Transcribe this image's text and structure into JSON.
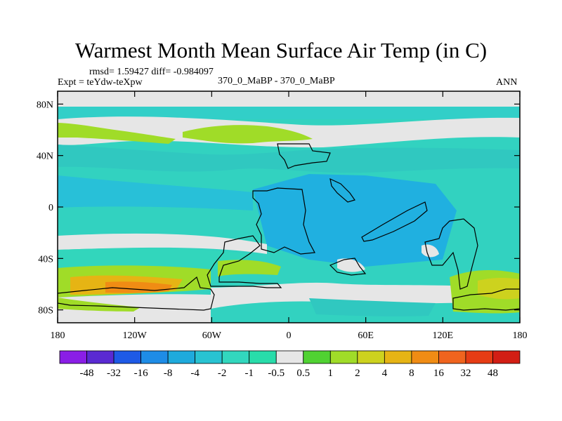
{
  "title": "Warmest Month Mean Surface Air Temp (in C)",
  "stats": "rmsd= 1.59427 diff= -0.984097",
  "left_label": "Expt = teYdw-teXpw",
  "center_label": "370_0_MaBP - 370_0_MaBP",
  "right_label": "ANN",
  "map": {
    "lat_ticks": [
      "80N",
      "40N",
      "0",
      "40S",
      "80S"
    ],
    "lat_values": [
      80,
      40,
      0,
      -40,
      -80
    ],
    "lon_ticks": [
      "180",
      "120W",
      "60W",
      "0",
      "60E",
      "120E",
      "180"
    ],
    "lon_values": [
      -180,
      -120,
      -60,
      0,
      60,
      120,
      180
    ],
    "lat_range": [
      -90,
      90
    ],
    "lon_range": [
      -180,
      180
    ]
  },
  "colorbar": {
    "labels": [
      "-48",
      "-32",
      "-16",
      "-8",
      "-4",
      "-2",
      "-1",
      "-0.5",
      "0.5",
      "1",
      "2",
      "4",
      "8",
      "16",
      "32",
      "48"
    ],
    "colors": [
      "#8a1ee6",
      "#5a2ad2",
      "#1e5ae6",
      "#1e8ce6",
      "#1eaadc",
      "#28c3d2",
      "#32d7be",
      "#28dcaa",
      "#e6e6e6",
      "#50d232",
      "#a0dc28",
      "#cdd21e",
      "#e6b414",
      "#f08c14",
      "#f0641e",
      "#e63c14",
      "#d21e14"
    ]
  }
}
